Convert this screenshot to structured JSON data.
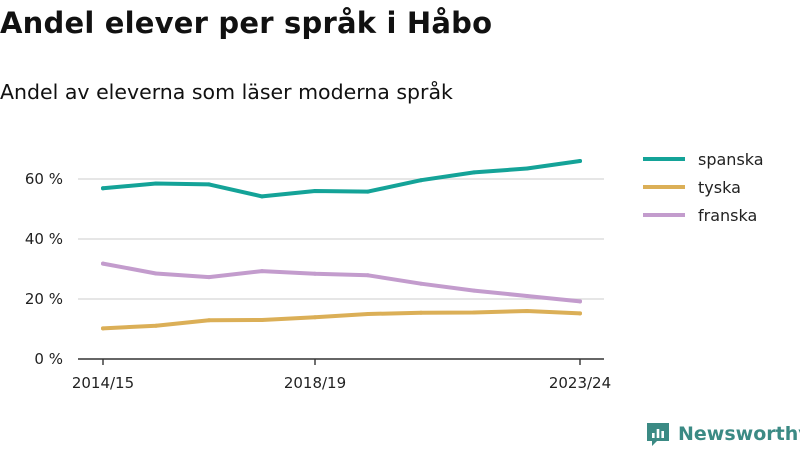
{
  "title": "Andel elever per språk i Håbo",
  "subtitle": "Andel av eleverna som läser moderna språk",
  "brand": {
    "name": "Newsworthy",
    "color": "#3b8a84"
  },
  "chart_data": {
    "type": "line",
    "title": "Andel elever per språk i Håbo",
    "subtitle": "Andel av eleverna som läser moderna språk",
    "x": [
      "2014/15",
      "2015/16",
      "2016/17",
      "2017/18",
      "2018/19",
      "2019/20",
      "2020/21",
      "2021/22",
      "2022/23",
      "2023/24"
    ],
    "x_tick_labels": [
      "2014/15",
      "2018/19",
      "2023/24"
    ],
    "y_ticks": [
      0,
      20,
      40,
      60
    ],
    "y_tick_labels": [
      "0 %",
      "20 %",
      "40 %",
      "60 %"
    ],
    "ylim": [
      0,
      70
    ],
    "grid": "horizontal",
    "legend_position": "right",
    "series": [
      {
        "name": "spanska",
        "color": "#14a398",
        "values": [
          56.9,
          58.5,
          58.2,
          54.2,
          56.0,
          55.8,
          59.6,
          62.2,
          63.5,
          66.0
        ]
      },
      {
        "name": "tyska",
        "color": "#dbaf57",
        "values": [
          10.2,
          11.1,
          12.9,
          13.0,
          13.9,
          15.0,
          15.4,
          15.5,
          16.0,
          15.2
        ]
      },
      {
        "name": "franska",
        "color": "#c39ccd",
        "values": [
          31.8,
          28.5,
          27.3,
          29.3,
          28.4,
          27.9,
          25.1,
          22.8,
          21.0,
          19.2
        ]
      }
    ]
  }
}
